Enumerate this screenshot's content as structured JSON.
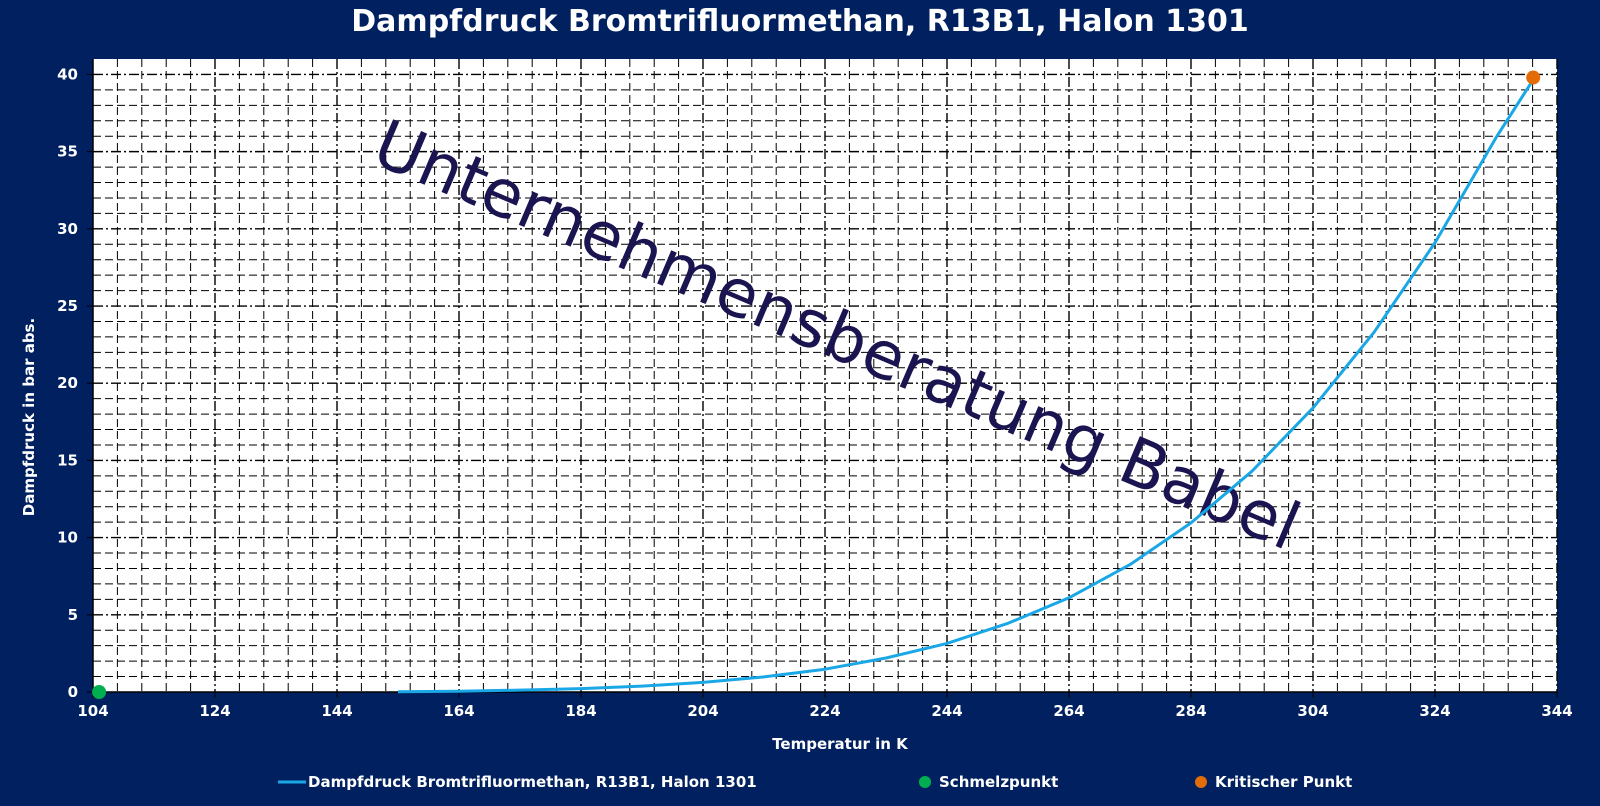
{
  "chart_data": {
    "type": "line",
    "title": "Dampfdruck Bromtrifluormethan, R13B1, Halon 1301",
    "xlabel": "Temperatur in K",
    "ylabel": "Dampfdruck in bar abs.",
    "xlim": [
      104,
      344
    ],
    "ylim": [
      0,
      41
    ],
    "x_ticks": [
      "104",
      "124",
      "144",
      "164",
      "184",
      "204",
      "224",
      "244",
      "264",
      "284",
      "304",
      "324",
      "344"
    ],
    "y_ticks": [
      "0",
      "5",
      "10",
      "15",
      "20",
      "25",
      "30",
      "35",
      "40"
    ],
    "grid": true,
    "legend_position": "bottom",
    "watermark": "Unternehmensberatung Babel",
    "series": [
      {
        "name": "Dampfdruck Bromtrifluormethan, R13B1, Halon 1301",
        "color": "#1aa7e6",
        "kind": "line",
        "x": [
          154,
          164,
          174,
          184,
          194,
          204,
          214,
          224,
          234,
          244,
          254,
          264,
          274,
          284,
          294,
          304,
          314,
          324,
          334,
          340
        ],
        "y": [
          0.02,
          0.05,
          0.12,
          0.22,
          0.38,
          0.62,
          0.98,
          1.48,
          2.2,
          3.15,
          4.45,
          6.1,
          8.25,
          10.95,
          14.3,
          18.4,
          23.3,
          29.1,
          35.9,
          39.6
        ]
      },
      {
        "name": "Schmelzpunkt",
        "color": "#00b050",
        "kind": "point",
        "x": [
          105
        ],
        "y": [
          0
        ]
      },
      {
        "name": "Kritischer Punkt",
        "color": "#e36c09",
        "kind": "point",
        "x": [
          340.1
        ],
        "y": [
          39.8
        ]
      }
    ]
  }
}
